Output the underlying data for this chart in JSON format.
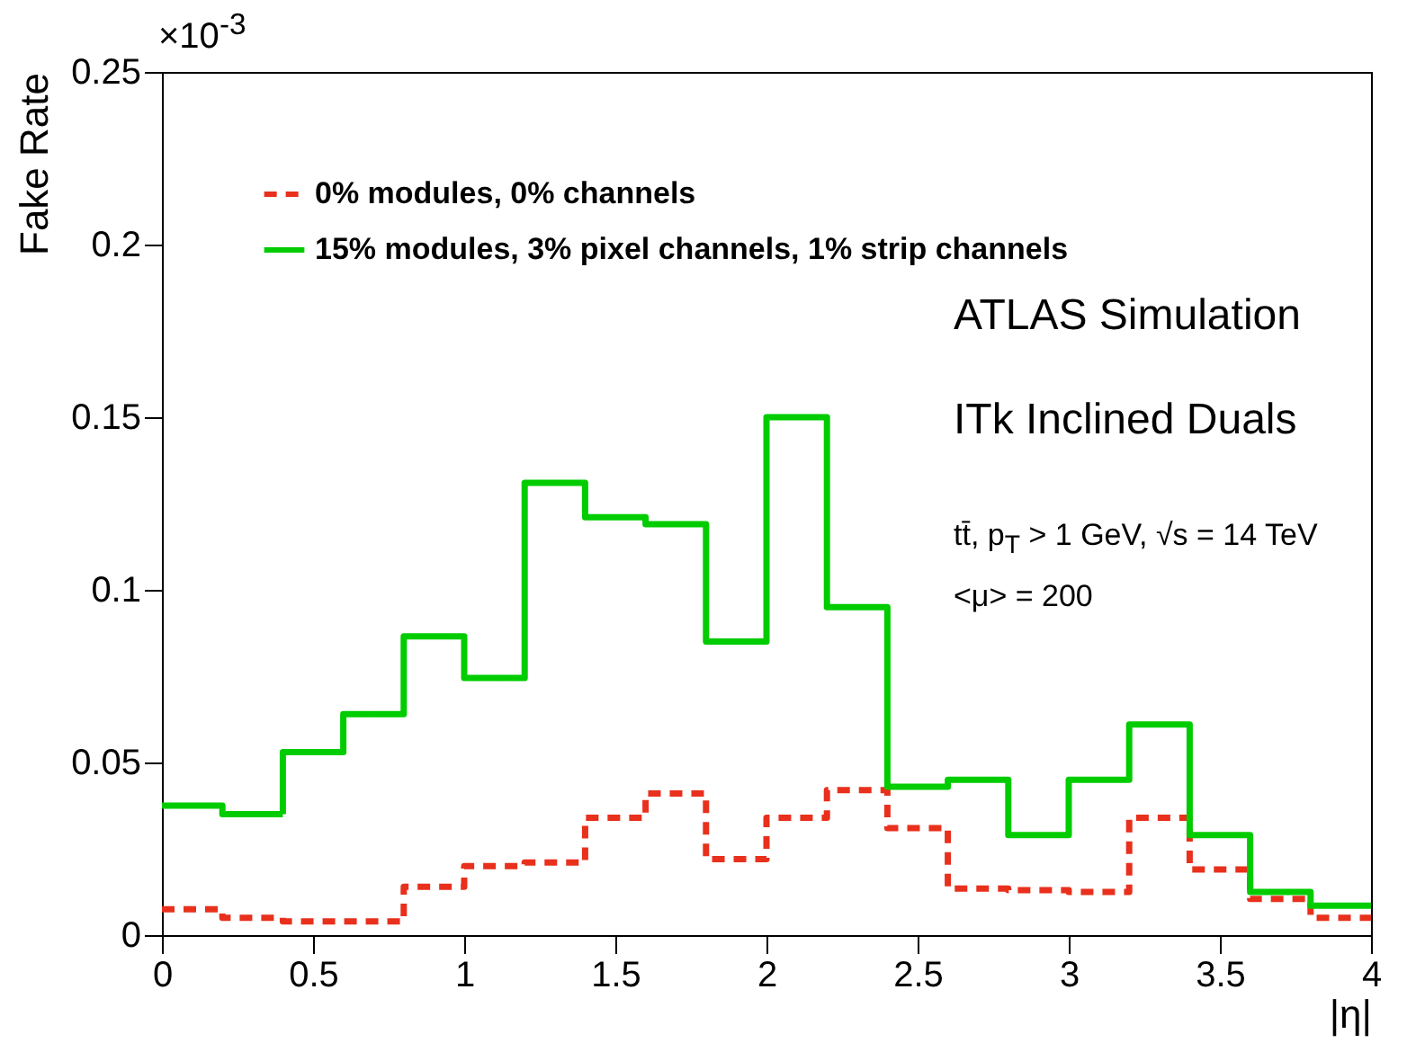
{
  "chart_data": {
    "type": "histogram",
    "xlabel": "|η|",
    "ylabel": "Fake Rate",
    "bins": [
      0,
      0.2,
      0.4,
      0.6,
      0.8,
      1.0,
      1.2,
      1.4,
      1.6,
      1.8,
      2.0,
      2.2,
      2.4,
      2.6,
      2.8,
      3.0,
      3.2,
      3.4,
      3.6,
      3.8,
      4.0
    ],
    "series": [
      {
        "name": "0% modules, 0% channels",
        "color": "#e8301c",
        "line_style": "dashed",
        "values": [
          0.0075,
          0.005,
          0.004,
          0.004,
          0.014,
          0.02,
          0.021,
          0.034,
          0.041,
          0.022,
          0.034,
          0.042,
          0.031,
          0.0135,
          0.013,
          0.0125,
          0.034,
          0.019,
          0.0105,
          0.005
        ]
      },
      {
        "name": "15% modules, 3% pixel channels, 1% strip channels",
        "color": "#00cc00",
        "line_style": "solid",
        "values": [
          0.0375,
          0.035,
          0.053,
          0.064,
          0.0865,
          0.0745,
          0.131,
          0.121,
          0.119,
          0.085,
          0.15,
          0.095,
          0.043,
          0.045,
          0.029,
          0.045,
          0.061,
          0.029,
          0.0125,
          0.0085
        ]
      }
    ],
    "xlim": [
      0,
      4
    ],
    "xticks": [
      0,
      0.5,
      1,
      1.5,
      2,
      2.5,
      3,
      3.5,
      4
    ],
    "ylim": [
      0,
      0.25
    ],
    "yticks": [
      0,
      0.05,
      0.1,
      0.15,
      0.2,
      0.25
    ],
    "grid": false,
    "legend": "top left",
    "annotations": [
      "×10$^{-3}$",
      "ATLAS Simulation",
      "ITk Inclined Duals",
      "tt̄, p$_{T}$ > 1 GeV, √s = 14 TeV",
      "<μ> = 200"
    ]
  }
}
